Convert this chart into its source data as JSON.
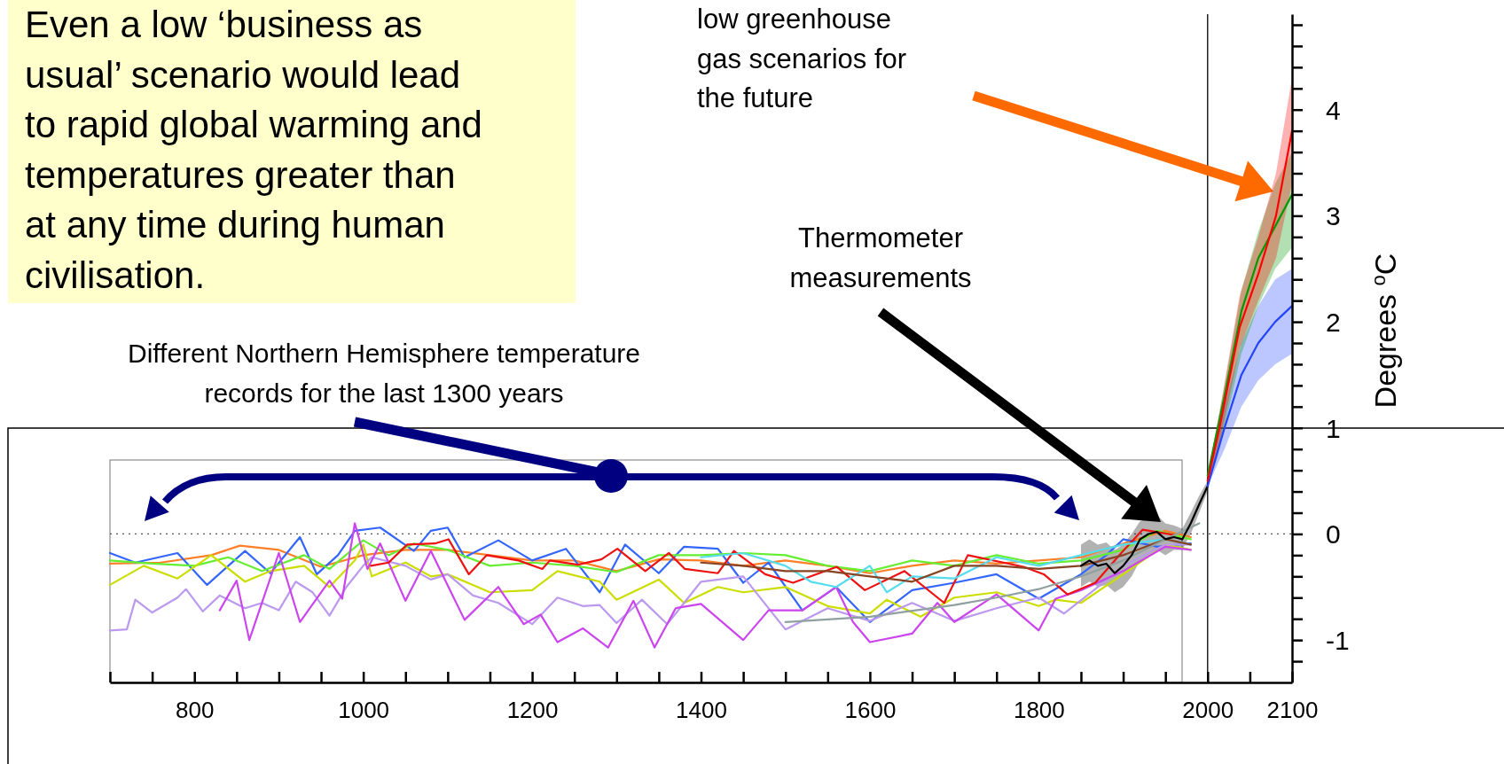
{
  "chart_data": {
    "type": "line",
    "ylabel": "Degrees $^{o}$C",
    "annotations": [
      "Even a low ‘business as\nusual’ scenario would lead\nto rapid global warming and\ntemperatures greater than\nat any time during human\ncivilisation.",
      "low greenhouse\ngas scenarios for\nthe future",
      "Thermometer\nmeasurements",
      "Different Northern Hemisphere temperature\nrecords for the last 1300 years"
    ],
    "xlim": [
      700,
      2100
    ],
    "xticks": [
      {
        "value": 700,
        "label": null
      },
      {
        "value": 750,
        "label": null
      },
      800,
      {
        "value": 850,
        "label": null
      },
      {
        "value": 900,
        "label": null
      },
      {
        "value": 950,
        "label": null
      },
      1000,
      {
        "value": 1050,
        "label": null
      },
      {
        "value": 1100,
        "label": null
      },
      {
        "value": 1150,
        "label": null
      },
      1200,
      {
        "value": 1250,
        "label": null
      },
      {
        "value": 1300,
        "label": null
      },
      {
        "value": 1350,
        "label": null
      },
      1400,
      {
        "value": 1450,
        "label": null
      },
      {
        "value": 1500,
        "label": null
      },
      {
        "value": 1550,
        "label": null
      },
      1600,
      {
        "value": 1650,
        "label": null
      },
      {
        "value": 1700,
        "label": null
      },
      {
        "value": 1750,
        "label": null
      },
      1800,
      {
        "value": 1850,
        "label": null
      },
      {
        "value": 1900,
        "label": null
      },
      {
        "value": 1950,
        "label": null
      },
      2000,
      {
        "value": 2050,
        "label": null
      },
      2100
    ],
    "ylim": [
      -1.4,
      4.9
    ],
    "yticks": [
      {
        "value": -1.2,
        "label": null
      },
      -1,
      {
        "value": -0.8,
        "label": null
      },
      {
        "value": -0.6,
        "label": null
      },
      {
        "value": -0.4,
        "label": null
      },
      {
        "value": -0.2,
        "label": null
      },
      0,
      {
        "value": 0.2,
        "label": null
      },
      {
        "value": 0.4,
        "label": null
      },
      {
        "value": 0.6,
        "label": null
      },
      {
        "value": 0.8,
        "label": null
      },
      1,
      {
        "value": 1.2,
        "label": null
      },
      {
        "value": 1.4,
        "label": null
      },
      {
        "value": 1.6,
        "label": null
      },
      {
        "value": 1.8,
        "label": null
      },
      2,
      {
        "value": 2.2,
        "label": null
      },
      {
        "value": 2.4,
        "label": null
      },
      {
        "value": 2.6,
        "label": null
      },
      {
        "value": 2.8,
        "label": null
      },
      3,
      {
        "value": 3.2,
        "label": null
      },
      {
        "value": 3.4,
        "label": null
      },
      {
        "value": 3.6,
        "label": null
      },
      {
        "value": 3.8,
        "label": null
      },
      4,
      {
        "value": 4.2,
        "label": null
      },
      {
        "value": 4.4,
        "label": null
      },
      {
        "value": 4.6,
        "label": null
      },
      {
        "value": 4.8,
        "label": null
      }
    ],
    "grid": false,
    "marker": "none",
    "line_style": "solid",
    "ref_lines": [
      {
        "axis": "y",
        "value": 0,
        "line_style": "dotted",
        "color": "#555555"
      },
      {
        "axis": "x",
        "value": 2000,
        "line_style": "solid",
        "color": "#000000"
      }
    ],
    "series": [
      {
        "color": "#ff7f27",
        "x": [
          700,
          760,
          820,
          854,
          900,
          950,
          1000,
          1050,
          1100,
          1150,
          1200,
          1250,
          1300,
          1350,
          1400,
          1450,
          1500,
          1550,
          1600,
          1650,
          1700,
          1750,
          1800,
          1850,
          1900,
          1950,
          1980
        ],
        "values": [
          -0.28,
          -0.27,
          -0.2,
          -0.11,
          -0.15,
          -0.31,
          -0.2,
          -0.15,
          -0.15,
          -0.2,
          -0.25,
          -0.25,
          -0.35,
          -0.24,
          -0.25,
          -0.3,
          -0.25,
          -0.3,
          -0.37,
          -0.3,
          -0.25,
          -0.28,
          -0.25,
          -0.22,
          -0.09,
          0.03,
          -0.03
        ]
      },
      {
        "color": "#3366ff",
        "x": [
          700,
          730,
          780,
          815,
          860,
          890,
          925,
          945,
          970,
          990,
          1020,
          1060,
          1080,
          1100,
          1120,
          1160,
          1200,
          1240,
          1280,
          1310,
          1350,
          1380,
          1420,
          1450,
          1480,
          1520,
          1560,
          1600,
          1650,
          1700,
          1750,
          1800,
          1850,
          1880,
          1900,
          1940,
          1980
        ],
        "values": [
          -0.18,
          -0.27,
          -0.18,
          -0.48,
          -0.16,
          -0.37,
          -0.03,
          -0.38,
          -0.2,
          0.03,
          0.06,
          -0.16,
          0.03,
          0.06,
          -0.22,
          -0.06,
          -0.25,
          -0.14,
          -0.55,
          -0.1,
          -0.37,
          -0.12,
          -0.14,
          -0.46,
          -0.27,
          -0.72,
          -0.5,
          -0.83,
          -0.53,
          -0.46,
          -0.38,
          -0.61,
          -0.38,
          -0.2,
          -0.05,
          -0.12,
          -0.09
        ]
      },
      {
        "color": "#66ee33",
        "x": [
          700,
          750,
          800,
          840,
          880,
          930,
          960,
          1000,
          1030,
          1060,
          1100,
          1150,
          1200,
          1250,
          1300,
          1350,
          1400,
          1450,
          1500,
          1550,
          1600,
          1650,
          1700,
          1750,
          1800,
          1850,
          1900,
          1940,
          1980
        ],
        "values": [
          -0.25,
          -0.28,
          -0.3,
          -0.22,
          -0.35,
          -0.2,
          -0.33,
          -0.06,
          -0.2,
          -0.09,
          -0.15,
          -0.3,
          -0.27,
          -0.3,
          -0.36,
          -0.2,
          -0.2,
          -0.18,
          -0.2,
          -0.3,
          -0.35,
          -0.25,
          -0.3,
          -0.2,
          -0.28,
          -0.25,
          -0.15,
          0.03,
          -0.05
        ]
      },
      {
        "color": "#ccdd00",
        "x": [
          700,
          740,
          780,
          820,
          860,
          890,
          930,
          960,
          990,
          1000,
          1010,
          1050,
          1080,
          1100,
          1150,
          1200,
          1230,
          1280,
          1300,
          1350,
          1380,
          1420,
          1450,
          1500,
          1550,
          1600,
          1620,
          1660,
          1700,
          1750,
          1800,
          1820,
          1850,
          1900,
          1950,
          1980
        ],
        "values": [
          -0.48,
          -0.3,
          -0.42,
          -0.2,
          -0.45,
          -0.35,
          -0.3,
          -0.5,
          -0.25,
          -0.1,
          -0.4,
          -0.27,
          -0.4,
          -0.38,
          -0.55,
          -0.53,
          -0.35,
          -0.45,
          -0.62,
          -0.43,
          -0.65,
          -0.5,
          -0.55,
          -0.5,
          -0.68,
          -0.75,
          -0.62,
          -0.78,
          -0.6,
          -0.55,
          -0.68,
          -0.62,
          -0.65,
          -0.38,
          -0.1,
          -0.15
        ]
      },
      {
        "color": "#bb99ee",
        "x": [
          700,
          720,
          730,
          750,
          780,
          790,
          810,
          830,
          860,
          880,
          900,
          920,
          940,
          960,
          980,
          1000,
          1010,
          1050,
          1080,
          1100,
          1130,
          1160,
          1200,
          1230,
          1260,
          1280,
          1300,
          1330,
          1360,
          1400,
          1450,
          1500,
          1550,
          1600,
          1650,
          1700,
          1750,
          1800,
          1830,
          1870,
          1900,
          1950,
          1980
        ],
        "values": [
          -0.91,
          -0.9,
          -0.62,
          -0.74,
          -0.6,
          -0.52,
          -0.73,
          -0.58,
          -0.7,
          -0.65,
          -0.72,
          -0.45,
          -0.55,
          -0.77,
          -0.5,
          -0.3,
          -0.22,
          -0.3,
          -0.43,
          -0.38,
          -0.58,
          -0.65,
          -0.85,
          -0.6,
          -0.68,
          -0.67,
          -0.84,
          -0.62,
          -0.85,
          -0.45,
          -0.4,
          -0.9,
          -0.7,
          -0.82,
          -0.65,
          -0.82,
          -0.7,
          -0.6,
          -0.75,
          -0.5,
          -0.3,
          -0.1,
          -0.1
        ]
      },
      {
        "color": "#cc44ee",
        "x": [
          830,
          850,
          865,
          900,
          925,
          960,
          975,
          990,
          1005,
          1020,
          1050,
          1080,
          1120,
          1160,
          1190,
          1210,
          1230,
          1260,
          1290,
          1320,
          1345,
          1370,
          1400,
          1450,
          1480,
          1520,
          1560,
          1580,
          1600,
          1650,
          1680,
          1700,
          1750,
          1800,
          1820,
          1850,
          1900,
          1950,
          1980
        ],
        "values": [
          -0.72,
          -0.44,
          -1,
          -0.18,
          -0.83,
          -0.44,
          -0.61,
          0.1,
          -0.33,
          -0.09,
          -0.63,
          -0.16,
          -0.81,
          -0.5,
          -0.85,
          -0.76,
          -1.02,
          -0.89,
          -1.07,
          -0.63,
          -1.07,
          -0.7,
          -0.66,
          -1,
          -0.72,
          -0.72,
          -0.5,
          -0.83,
          -1.02,
          -0.94,
          -0.65,
          -0.83,
          -0.57,
          -0.91,
          -0.61,
          -0.53,
          -0.35,
          -0.12,
          -0.15
        ]
      },
      {
        "color": "#ee1111",
        "x": [
          1009,
          1030,
          1052,
          1085,
          1101,
          1125,
          1146,
          1184,
          1212,
          1221,
          1254,
          1282,
          1301,
          1334,
          1362,
          1381,
          1420,
          1439,
          1476,
          1509,
          1561,
          1594,
          1641,
          1688,
          1716,
          1782,
          1806,
          1834,
          1867,
          1900,
          1923,
          1961
        ],
        "values": [
          -0.3,
          -0.27,
          -0.1,
          -0.09,
          -0.05,
          -0.38,
          -0.2,
          -0.25,
          -0.33,
          -0.25,
          -0.29,
          -0.24,
          -0.14,
          -0.35,
          -0.18,
          -0.33,
          -0.37,
          -0.16,
          -0.38,
          -0.46,
          -0.31,
          -0.53,
          -0.35,
          -0.65,
          -0.2,
          -0.31,
          -0.38,
          -0.57,
          -0.46,
          -0.16,
          0.04,
          -0.01
        ]
      },
      {
        "color": "#55ddee",
        "x": [
          1400,
          1450,
          1500,
          1530,
          1560,
          1600,
          1620,
          1650,
          1700,
          1750,
          1800,
          1850,
          1900,
          1950,
          1980
        ],
        "values": [
          -0.22,
          -0.18,
          -0.3,
          -0.45,
          -0.5,
          -0.3,
          -0.55,
          -0.4,
          -0.42,
          -0.22,
          -0.3,
          -0.2,
          -0.1,
          -0.05,
          -0.1
        ]
      },
      {
        "color": "#884422",
        "x": [
          1400,
          1450,
          1500,
          1550,
          1600,
          1650,
          1700,
          1750,
          1800,
          1850,
          1900,
          1950,
          1980
        ],
        "values": [
          -0.27,
          -0.3,
          -0.35,
          -0.35,
          -0.4,
          -0.45,
          -0.3,
          -0.3,
          -0.33,
          -0.3,
          -0.2,
          -0.05,
          -0.1
        ]
      },
      {
        "color": "#90a0a0",
        "x": [
          1500,
          1600,
          1700,
          1750,
          1800,
          1850,
          1900,
          1950,
          1990
        ],
        "values": [
          -0.83,
          -0.78,
          -0.67,
          -0.6,
          -0.52,
          -0.4,
          -0.25,
          -0.05,
          0.1
        ]
      },
      {
        "color": "#000000",
        "x": [
          1850,
          1860,
          1870,
          1880,
          1890,
          1900,
          1910,
          1920,
          1930,
          1940,
          1950,
          1960,
          1970,
          1980,
          1990,
          2000
        ],
        "values": [
          -0.3,
          -0.25,
          -0.3,
          -0.28,
          -0.37,
          -0.3,
          -0.2,
          -0.05,
          0,
          0.02,
          -0.05,
          -0.03,
          -0.05,
          0.1,
          0.28,
          0.45
        ],
        "lower": [
          -0.5,
          -0.45,
          -0.5,
          -0.48,
          -0.55,
          -0.5,
          -0.4,
          -0.25,
          -0.2,
          -0.15,
          -0.2,
          -0.15,
          -0.15,
          0,
          0.2,
          0.4
        ],
        "upper": [
          -0.1,
          -0.05,
          -0.1,
          -0.08,
          -0.15,
          -0.1,
          0,
          0.12,
          0.15,
          0.18,
          0.1,
          0.08,
          0.05,
          0.2,
          0.36,
          0.5
        ]
      },
      {
        "color": "#2244ff",
        "x": [
          2000,
          2020,
          2040,
          2060,
          2080,
          2100
        ],
        "values": [
          0.45,
          1,
          1.5,
          1.8,
          2,
          2.15
        ],
        "lower": [
          0.45,
          0.8,
          1.2,
          1.45,
          1.6,
          1.7
        ],
        "upper": [
          0.55,
          1.2,
          1.8,
          2.15,
          2.4,
          2.5
        ]
      },
      {
        "color": "#009900",
        "x": [
          2000,
          2020,
          2040,
          2060,
          2080,
          2100
        ],
        "values": [
          0.55,
          1.3,
          2.1,
          2.6,
          2.9,
          3.2
        ],
        "lower": [
          0.45,
          1,
          1.7,
          2.15,
          2.5,
          2.7
        ],
        "upper": [
          0.55,
          1.4,
          2.3,
          2.85,
          3.3,
          3.6
        ]
      },
      {
        "color": "#ff0000",
        "x": [
          2000,
          2014,
          2038,
          2060,
          2081,
          2100
        ],
        "values": [
          0.5,
          1,
          1.95,
          2.45,
          3,
          3.8
        ],
        "lower": [
          0.45,
          0.85,
          1.75,
          2.2,
          2.6,
          3.3
        ],
        "upper": [
          0.55,
          1.15,
          2.25,
          2.8,
          3.4,
          4.3
        ]
      }
    ]
  }
}
